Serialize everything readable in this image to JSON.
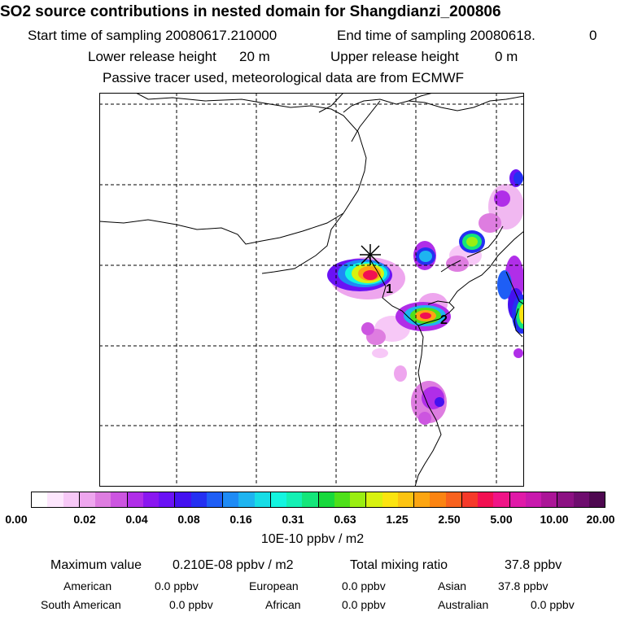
{
  "header": {
    "title": "SO2 source contributions in nested domain for Shangdianzi_200806",
    "start_label": "Start time of sampling 20080617.210000",
    "end_label": "End time of sampling 20080618.",
    "end_value": "0",
    "lower_label": "Lower release height",
    "lower_value": "20 m",
    "upper_label": "Upper release height",
    "upper_value": "0 m",
    "tracer_note": "Passive tracer used, meteorological data are from ECMWF"
  },
  "map": {
    "site_markers": [
      "1",
      "2"
    ]
  },
  "colorbar": {
    "ticks": [
      "0.00",
      "0.02",
      "0.04",
      "0.08",
      "0.16",
      "0.31",
      "0.63",
      "1.25",
      "2.50",
      "5.00",
      "10.00",
      "20.00"
    ],
    "units": "10E-10 ppbv / m2",
    "colors": [
      "#ffffff",
      "#fde6fd",
      "#f7c8f7",
      "#eea6ee",
      "#de7de0",
      "#cc55e0",
      "#b02ee8",
      "#8a17f0",
      "#6a12f5",
      "#4411f0",
      "#2430f2",
      "#1e5ef5",
      "#1e8bf5",
      "#1eb4f0",
      "#17dde6",
      "#13f5e0",
      "#14f0b4",
      "#14e67a",
      "#18d93c",
      "#4fe01a",
      "#9aee12",
      "#d8f210",
      "#fbe410",
      "#fcc412",
      "#fca512",
      "#fb8412",
      "#f8621e",
      "#f53a2a",
      "#f21052",
      "#f01487",
      "#e01aa8",
      "#c819ad",
      "#ab1597",
      "#8c1183",
      "#6e0d6e",
      "#4e0850"
    ]
  },
  "stats": {
    "max_label": "Maximum value",
    "max_value": "0.210E-08 ppbv / m2",
    "total_label": "Total mixing ratio",
    "total_value": "37.8 ppbv",
    "regions": [
      {
        "name": "American",
        "value": "0.0 ppbv"
      },
      {
        "name": "European",
        "value": "0.0 ppbv"
      },
      {
        "name": "Asian",
        "value": "37.8 ppbv"
      },
      {
        "name": "South American",
        "value": "0.0 ppbv"
      },
      {
        "name": "African",
        "value": "0.0 ppbv"
      },
      {
        "name": "Australian",
        "value": "0.0 ppbv"
      }
    ]
  }
}
